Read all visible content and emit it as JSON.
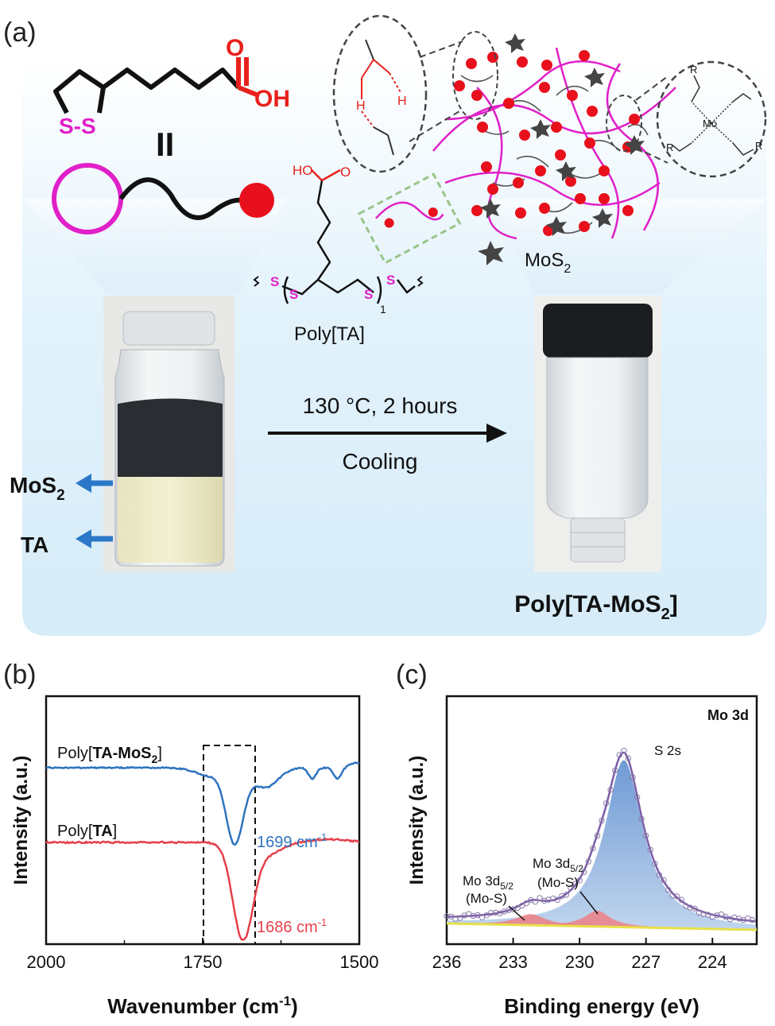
{
  "panel_a": {
    "label": "(a)",
    "oh_label": "OH",
    "oh_small": "HO",
    "ss_label": "S-S",
    "equals": "II",
    "polymer_name": "Poly[TA]",
    "mos2_legend": "MoS",
    "mos2_sub": "2",
    "condition_line1": "130 °C, 2 hours",
    "condition_line2": "Cooling",
    "arrow_label_mos2": "MoS",
    "arrow_label_mos2_sub": "2",
    "arrow_label_ta": "TA",
    "product_prefix": "Poly[TA-MoS",
    "product_sub": "2",
    "product_suffix": "]",
    "s_letter": "S",
    "repeat_sub": "1",
    "mo_label": "Mo",
    "r_label": "R",
    "h_label": "H",
    "o_label": "O"
  },
  "panel_b": {
    "label": "(b)",
    "chart_data": {
      "type": "line",
      "xlabel": "Wavenumber (cm",
      "xlabel_sup": "-1",
      "xlabel_close": ")",
      "ylabel": "Intensity (a.u.)",
      "xlim": [
        2000,
        1500
      ],
      "xticks": [
        "2000",
        "1750",
        "1500"
      ],
      "series": [
        {
          "name_prefix": "Poly[",
          "name_bold": "TA-MoS",
          "name_sub": "2",
          "name_suffix": "]",
          "color": "#2f74c0",
          "annotation": "1699 cm",
          "annotation_sup": "-1",
          "peak_x": 1699
        },
        {
          "name_prefix": "Poly[",
          "name_bold": "TA",
          "name_sub": "",
          "name_suffix": "]",
          "color": "#e6404a",
          "annotation": "1686 cm",
          "annotation_sup": "-1",
          "peak_x": 1686
        }
      ]
    }
  },
  "panel_c": {
    "label": "(c)",
    "chart_data": {
      "type": "line",
      "title": "Mo 3d",
      "xlabel": "Binding energy (eV)",
      "ylabel": "Intensity (a.u.)",
      "xlim": [
        236,
        222
      ],
      "xticks": [
        "236",
        "233",
        "230",
        "227",
        "224"
      ],
      "peaks": [
        {
          "label": "S 2s",
          "center": 228.0
        },
        {
          "label_main": "Mo 3d",
          "label_sub": "5/2",
          "label_line2": "(Mo-S)",
          "center": 232.2
        },
        {
          "label_main": "Mo 3d",
          "label_sub": "5/2",
          "label_line2": "(Mo-S)",
          "center": 229.2
        }
      ],
      "fit_color": "#7b5ca8",
      "fill_color": "#7fa7d8",
      "minor_fill_color": "#f07a80",
      "baseline_color": "#e8e04a"
    }
  }
}
